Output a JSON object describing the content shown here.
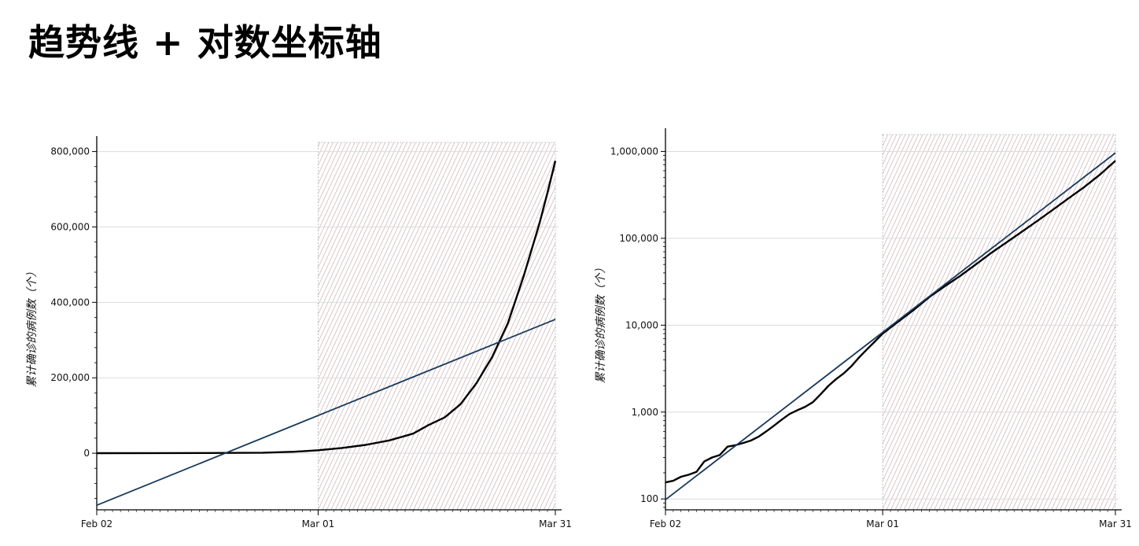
{
  "slide": {
    "title": "趋势线 + 对数坐标轴"
  },
  "chart_data": [
    {
      "type": "line",
      "x_scale": "time",
      "y_scale": "linear",
      "ylabel": "累计确诊的病例数（个）",
      "xlim": [
        "2020-02-02",
        "2020-03-31"
      ],
      "ylim": [
        -150000,
        820000
      ],
      "x_ticks": [
        {
          "date": "2020-02-02",
          "label": "Feb 02"
        },
        {
          "date": "2020-03-01",
          "label": "Mar 01"
        },
        {
          "date": "2020-03-31",
          "label": "Mar 31"
        }
      ],
      "y_ticks": [
        {
          "value": 0,
          "label": "0"
        },
        {
          "value": 200000,
          "label": "200,000"
        },
        {
          "value": 400000,
          "label": "400,000"
        },
        {
          "value": 600000,
          "label": "600,000"
        },
        {
          "value": 800000,
          "label": "800,000"
        }
      ],
      "grid": true,
      "shaded_range": {
        "from": "2020-03-01",
        "to": "2020-03-31",
        "color": "#c4a0a6"
      },
      "series": [
        {
          "color": "#000000",
          "points": [
            [
              "2020-02-02",
              150
            ],
            [
              "2020-02-09",
              300
            ],
            [
              "2020-02-16",
              600
            ],
            [
              "2020-02-23",
              1500
            ],
            [
              "2020-02-27",
              4000
            ],
            [
              "2020-03-01",
              8000
            ],
            [
              "2020-03-04",
              14000
            ],
            [
              "2020-03-07",
              22000
            ],
            [
              "2020-03-10",
              34000
            ],
            [
              "2020-03-13",
              52000
            ],
            [
              "2020-03-15",
              75000
            ],
            [
              "2020-03-17",
              95000
            ],
            [
              "2020-03-19",
              130000
            ],
            [
              "2020-03-21",
              185000
            ],
            [
              "2020-03-23",
              255000
            ],
            [
              "2020-03-25",
              345000
            ],
            [
              "2020-03-27",
              470000
            ],
            [
              "2020-03-29",
              610000
            ],
            [
              "2020-03-30",
              690000
            ],
            [
              "2020-03-31",
              775000
            ]
          ]
        },
        {
          "color": "#1a3a5c",
          "points": [
            [
              "2020-02-02",
              -138000
            ],
            [
              "2020-03-31",
              355000
            ]
          ]
        }
      ]
    },
    {
      "type": "line",
      "x_scale": "time",
      "y_scale": "log",
      "ylabel": "累计确诊的病例数（个）",
      "xlim": [
        "2020-02-02",
        "2020-03-31"
      ],
      "ylim": [
        75,
        1500000
      ],
      "x_ticks": [
        {
          "date": "2020-02-02",
          "label": "Feb 02"
        },
        {
          "date": "2020-03-01",
          "label": "Mar 01"
        },
        {
          "date": "2020-03-31",
          "label": "Mar 31"
        }
      ],
      "y_ticks": [
        {
          "value": 100,
          "label": "100"
        },
        {
          "value": 1000,
          "label": "1,000"
        },
        {
          "value": 10000,
          "label": "10,000"
        },
        {
          "value": 100000,
          "label": "100,000"
        },
        {
          "value": 1000000,
          "label": "1,000,000"
        }
      ],
      "grid": true,
      "shaded_range": {
        "from": "2020-03-01",
        "to": "2020-03-31",
        "color": "#c4a0a6"
      },
      "series": [
        {
          "color": "#000000",
          "points": [
            [
              "2020-02-02",
              155
            ],
            [
              "2020-02-03",
              162
            ],
            [
              "2020-02-04",
              180
            ],
            [
              "2020-02-05",
              190
            ],
            [
              "2020-02-06",
              205
            ],
            [
              "2020-02-07",
              270
            ],
            [
              "2020-02-08",
              300
            ],
            [
              "2020-02-09",
              320
            ],
            [
              "2020-02-10",
              400
            ],
            [
              "2020-02-11",
              415
            ],
            [
              "2020-02-12",
              440
            ],
            [
              "2020-02-13",
              470
            ],
            [
              "2020-02-14",
              520
            ],
            [
              "2020-02-15",
              600
            ],
            [
              "2020-02-16",
              700
            ],
            [
              "2020-02-17",
              820
            ],
            [
              "2020-02-18",
              950
            ],
            [
              "2020-02-19",
              1050
            ],
            [
              "2020-02-20",
              1150
            ],
            [
              "2020-02-21",
              1300
            ],
            [
              "2020-02-22",
              1600
            ],
            [
              "2020-02-23",
              2000
            ],
            [
              "2020-02-24",
              2400
            ],
            [
              "2020-02-25",
              2800
            ],
            [
              "2020-02-26",
              3400
            ],
            [
              "2020-02-27",
              4300
            ],
            [
              "2020-02-28",
              5300
            ],
            [
              "2020-02-29",
              6500
            ],
            [
              "2020-03-01",
              8000
            ],
            [
              "2020-03-03",
              11000
            ],
            [
              "2020-03-05",
              15000
            ],
            [
              "2020-03-07",
              21000
            ],
            [
              "2020-03-09",
              28000
            ],
            [
              "2020-03-11",
              37000
            ],
            [
              "2020-03-13",
              50000
            ],
            [
              "2020-03-15",
              68000
            ],
            [
              "2020-03-17",
              90000
            ],
            [
              "2020-03-19",
              120000
            ],
            [
              "2020-03-21",
              160000
            ],
            [
              "2020-03-23",
              215000
            ],
            [
              "2020-03-25",
              290000
            ],
            [
              "2020-03-27",
              390000
            ],
            [
              "2020-03-29",
              540000
            ],
            [
              "2020-03-31",
              780000
            ]
          ]
        },
        {
          "color": "#1a3a5c",
          "points": [
            [
              "2020-02-02",
              98
            ],
            [
              "2020-03-31",
              960000
            ]
          ]
        }
      ]
    }
  ]
}
